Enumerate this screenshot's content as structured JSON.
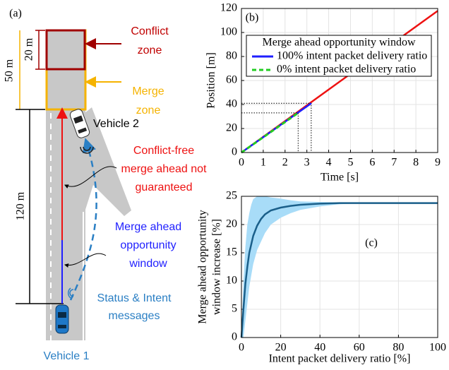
{
  "chart_data": [
    {
      "type": "line",
      "panel_label": "(b)",
      "xlabel": "Time [s]",
      "ylabel": "Position [m]",
      "xlim": [
        0,
        9
      ],
      "ylim": [
        0,
        120
      ],
      "xticks": [
        0,
        1,
        2,
        3,
        4,
        5,
        6,
        7,
        8,
        9
      ],
      "yticks": [
        0,
        20,
        40,
        60,
        80,
        100,
        120
      ],
      "grid": true,
      "legend_title": "Merge ahead opportunity window",
      "legend": "upper left",
      "series": [
        {
          "color": "#ee1111",
          "style": "solid",
          "x": [
            0,
            9
          ],
          "values": [
            0,
            118
          ]
        },
        {
          "name": "100% intent packet delivery ratio",
          "color": "#1f1fff",
          "style": "solid",
          "x": [
            0,
            3.2
          ],
          "values": [
            0,
            41
          ],
          "guides": true
        },
        {
          "name": "0% intent packet delivery ratio",
          "color": "#22cc22",
          "style": "dashed",
          "x": [
            0,
            2.6
          ],
          "values": [
            0,
            33
          ],
          "guides": true
        }
      ]
    },
    {
      "type": "line",
      "panel_label": "(c)",
      "xlabel": "Intent packet delivery ratio [%]",
      "ylabel": [
        "Merge ahead opportunity",
        "window increase [%]"
      ],
      "xlim": [
        0,
        100
      ],
      "ylim": [
        0,
        25
      ],
      "xticks": [
        0,
        20,
        40,
        60,
        80,
        100
      ],
      "yticks": [
        0,
        5,
        10,
        15,
        20,
        25
      ],
      "grid": true,
      "band": {
        "color": "#a8dcf8",
        "x": [
          0,
          1,
          2,
          3,
          4,
          5,
          6,
          8,
          10,
          12,
          15,
          20,
          25,
          30,
          40,
          50,
          60,
          80,
          100
        ],
        "upper": [
          0,
          10,
          16,
          20,
          22,
          23.5,
          24.5,
          25,
          25,
          25,
          24.8,
          24.6,
          24.3,
          24.1,
          24,
          23.9,
          23.85,
          23.8,
          23.8
        ],
        "lower": [
          0,
          0,
          3,
          6,
          9,
          11,
          13,
          15.5,
          17,
          18.5,
          20,
          21.2,
          22,
          22.6,
          23.2,
          23.6,
          23.75,
          23.8,
          23.8
        ]
      },
      "series": [
        {
          "color": "#1a5f8a",
          "style": "solid",
          "x": [
            0,
            1,
            2,
            3,
            4,
            5,
            6,
            8,
            10,
            12,
            15,
            20,
            25,
            30,
            40,
            50,
            60,
            80,
            100
          ],
          "values": [
            0,
            5,
            9.5,
            12.5,
            15,
            16.5,
            18,
            19.8,
            21,
            21.8,
            22.5,
            23,
            23.3,
            23.5,
            23.7,
            23.8,
            23.8,
            23.8,
            23.8
          ]
        }
      ]
    }
  ],
  "diagram": {
    "panel_label": "(a)",
    "dim_20": "20 m",
    "dim_50": "50 m",
    "dim_120": "120 m",
    "conflict_zone": [
      "Conflict",
      "zone"
    ],
    "merge_zone": [
      "Merge",
      "zone"
    ],
    "vehicle_2": "Vehicle 2",
    "conflict_free": [
      "Conflict-free",
      "merge ahead not",
      "guaranteed"
    ],
    "opportunity": [
      "Merge ahead",
      "opportunity",
      "window"
    ],
    "messages": [
      "Status & Intent",
      "messages"
    ],
    "vehicle_1": "Vehicle 1"
  }
}
